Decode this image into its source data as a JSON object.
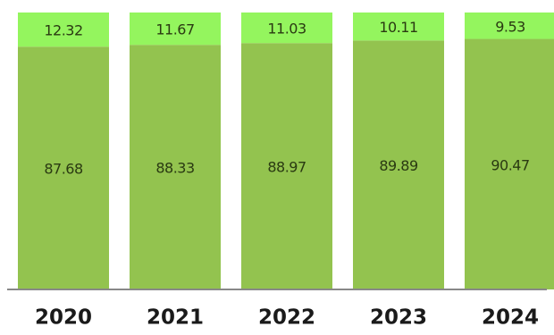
{
  "chart_data": {
    "type": "bar",
    "stacked": true,
    "categories": [
      "2020",
      "2021",
      "2022",
      "2023",
      "2024"
    ],
    "series": [
      {
        "color": "#93c34f",
        "values": [
          87.68,
          88.33,
          88.97,
          89.89,
          90.47
        ],
        "labels": [
          "87.68",
          "88.33",
          "88.97",
          "89.89",
          "90.47"
        ]
      },
      {
        "color": "#94f55e",
        "values": [
          12.32,
          11.67,
          11.03,
          10.11,
          9.53
        ],
        "labels": [
          "12.32",
          "11.67",
          "11.03",
          "10.11",
          "9.53"
        ]
      }
    ],
    "ylim": [
      0,
      100
    ],
    "grid": false,
    "colors": {
      "axis": "#888888"
    }
  }
}
